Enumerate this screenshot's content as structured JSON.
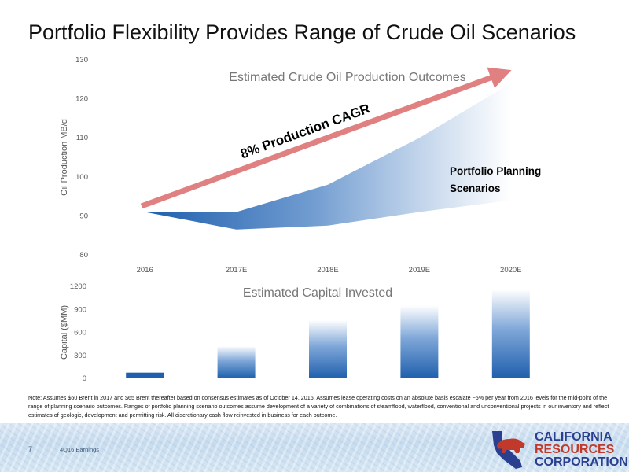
{
  "slide": {
    "title": "Portfolio Flexibility Provides Range of Crude Oil Scenarios",
    "note": "Note: Assumes $60 Brent in 2017 and $65 Brent thereafter based on consensus estimates as of October 14, 2016. Assumes lease operating costs on an absolute basis escalate ~5% per year from 2016 levels for the mid-point of the range of planning scenario outcomes. Ranges of portfolio planning scenario outcomes assume development of a variety of combinations of steamflood, waterflood, conventional and unconventional projects in our inventory and reflect estimates of geologic, development and permitting risk. All discretionary cash flow reinvested in business for each outcome.",
    "page_number": "7",
    "footer_label": "4Q16 Earnings",
    "logo": {
      "line1": "CALIFORNIA",
      "line2": "RESOURCES",
      "line3": "CORPORATION"
    }
  },
  "colors": {
    "dark_blue": "#1f5fad",
    "arrow_red": "#e08080",
    "logo_blue": "#2a3f8f",
    "logo_red": "#c0392b"
  },
  "chart_data": [
    {
      "type": "area",
      "title": "Estimated Crude Oil Production Outcomes",
      "ylabel": "Oil Production MB/d",
      "xlabel": "",
      "categories": [
        "2016",
        "2017E",
        "2018E",
        "2019E",
        "2020E"
      ],
      "ylim": [
        80,
        130
      ],
      "yticks": [
        80,
        90,
        100,
        110,
        120,
        130
      ],
      "series": [
        {
          "values": [
            91,
            91,
            98,
            110,
            124
          ]
        },
        {
          "values": [
            91,
            86.5,
            87.5,
            91,
            94
          ]
        }
      ],
      "annotations": {
        "cagr": "8% Production CAGR",
        "scenarios_line1": "Portfolio Planning",
        "scenarios_line2": "Scenarios"
      },
      "grid": false
    },
    {
      "type": "bar",
      "title": "Estimated Capital Invested",
      "ylabel": "Capital ($MM)",
      "categories": [
        "2016",
        "2017E",
        "2018E",
        "2019E",
        "2020E"
      ],
      "values": [
        75,
        420,
        760,
        950,
        1160
      ],
      "ylim": [
        0,
        1200
      ],
      "yticks": [
        0,
        300,
        600,
        900,
        1200
      ],
      "grid": false
    }
  ]
}
